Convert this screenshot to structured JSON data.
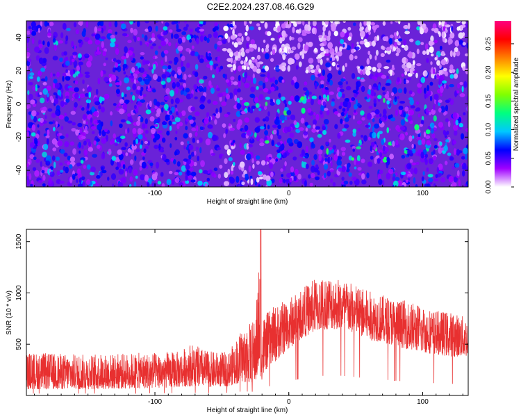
{
  "title": "C2E2.2024.237.08.46.G29",
  "chart_data": [
    {
      "type": "heatmap",
      "xlabel": "Height of straight line (km)",
      "ylabel": "Frequency (Hz)",
      "xlim": [
        -196,
        134
      ],
      "ylim": [
        -50,
        50
      ],
      "xticks": [
        -100,
        0,
        100
      ],
      "yticks": [
        -40,
        -20,
        0,
        20,
        40
      ],
      "colorbar": {
        "label": "Normalized spectral amplitude",
        "range": [
          0,
          0.29
        ],
        "ticks": [
          "0.00",
          "0.05",
          "0.10",
          "0.15",
          "0.20",
          "0.25"
        ],
        "tick_values": [
          0.0,
          0.05,
          0.1,
          0.15,
          0.2,
          0.25
        ],
        "colormap": [
          "#ffffff",
          "#a000ff",
          "#0000ff",
          "#00c8ff",
          "#00ff80",
          "#80ff00",
          "#ffff00",
          "#ff8000",
          "#ff0000",
          "#ff0080"
        ]
      }
    },
    {
      "type": "line",
      "xlabel": "Height of straight line (km)",
      "ylabel": "SNR (10 * v/v)",
      "xlim": [
        -196,
        134
      ],
      "ylim": [
        0,
        1620
      ],
      "xticks": [
        -100,
        0,
        100
      ],
      "yticks": [
        500,
        1000,
        1500
      ],
      "color": "#e83030",
      "envelope": {
        "x": [
          -196,
          -150,
          -100,
          -80,
          -75,
          -60,
          -45,
          -35,
          -25,
          -22,
          -20,
          -15,
          -10,
          0,
          10,
          20,
          30,
          40,
          50,
          60,
          70,
          80,
          90,
          100,
          110,
          120,
          134
        ],
        "low": [
          60,
          60,
          70,
          80,
          90,
          80,
          90,
          130,
          120,
          200,
          150,
          300,
          330,
          450,
          560,
          620,
          650,
          640,
          600,
          540,
          520,
          480,
          450,
          420,
          400,
          380,
          380
        ],
        "high": [
          420,
          400,
          420,
          430,
          520,
          430,
          420,
          650,
          750,
          1380,
          780,
          820,
          880,
          950,
          1050,
          1150,
          1180,
          1140,
          1080,
          1020,
          980,
          950,
          920,
          880,
          830,
          820,
          760
        ]
      }
    }
  ]
}
